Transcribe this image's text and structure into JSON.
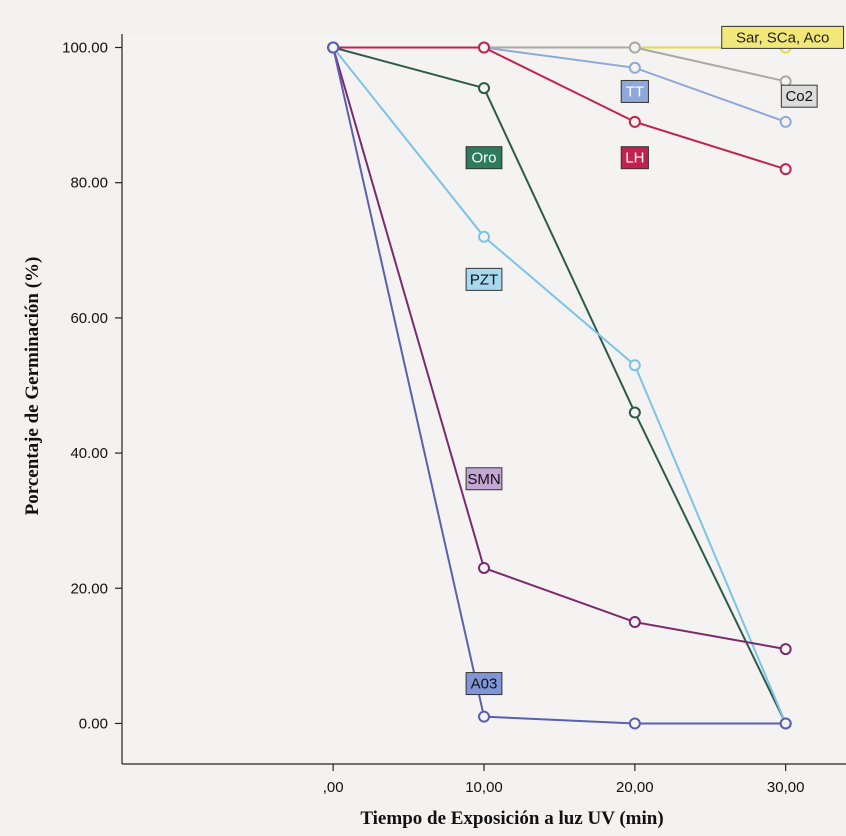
{
  "chart_data": {
    "type": "line",
    "xlabel": "Tiempo de Exposición a luz UV (min)",
    "ylabel": "Porcentaje de Germinación  (%)",
    "x": [
      0,
      10,
      20,
      30
    ],
    "x_tick_labels": [
      ",00",
      "10,00",
      "20,00",
      "30,00"
    ],
    "y_tick_labels": [
      "0.00",
      "20.00",
      "40.00",
      "60.00",
      "80.00",
      "100.00"
    ],
    "y_ticks": [
      0,
      20,
      40,
      60,
      80,
      100
    ],
    "xlim": [
      -14,
      34
    ],
    "ylim": [
      -6,
      102
    ],
    "grid": false,
    "series": [
      {
        "name": "Sar, SCa, Aco",
        "color": "#e6d84c",
        "values": [
          100,
          100,
          100,
          100
        ]
      },
      {
        "name": "TT",
        "color": "#8fa8da",
        "values": [
          100,
          100,
          97,
          89
        ]
      },
      {
        "name": "Co2",
        "color": "#a9a9a9",
        "values": [
          100,
          100,
          100,
          95
        ]
      },
      {
        "name": "LH",
        "color": "#c2224f",
        "values": [
          100,
          100,
          89,
          82
        ]
      },
      {
        "name": "Oro",
        "color": "#2e5a4c",
        "values": [
          100,
          94,
          46,
          0
        ]
      },
      {
        "name": "PZT",
        "color": "#7cc3e6",
        "values": [
          100,
          72,
          53,
          0
        ]
      },
      {
        "name": "SMN",
        "color": "#7b2a6d",
        "values": [
          100,
          23,
          15,
          11
        ]
      },
      {
        "name": "A03",
        "color": "#5b5fb0",
        "values": [
          100,
          1,
          0,
          0
        ]
      }
    ],
    "labels": [
      {
        "text": "Sar, SCa, Aco",
        "bg": "#f2e87a",
        "fg": "#222",
        "x": 29.8,
        "y": 101.5
      },
      {
        "text": "TT",
        "bg": "#8fa8da",
        "fg": "#fff",
        "x": 20.0,
        "y": 93.5
      },
      {
        "text": "Co2",
        "bg": "#dcdcdc",
        "fg": "#111",
        "x": 30.9,
        "y": 92.8
      },
      {
        "text": "LH",
        "bg": "#c2224f",
        "fg": "#fff",
        "x": 20.0,
        "y": 83.7
      },
      {
        "text": "Oro",
        "bg": "#2e7a5f",
        "fg": "#fff",
        "x": 10.0,
        "y": 83.7
      },
      {
        "text": "PZT",
        "bg": "#a8d8ef",
        "fg": "#111",
        "x": 10.0,
        "y": 65.7
      },
      {
        "text": "SMN",
        "bg": "#c3a6d3",
        "fg": "#111",
        "x": 10.0,
        "y": 36.2
      },
      {
        "text": "A03",
        "bg": "#7f95d6",
        "fg": "#111",
        "x": 10.0,
        "y": 5.9
      }
    ]
  }
}
